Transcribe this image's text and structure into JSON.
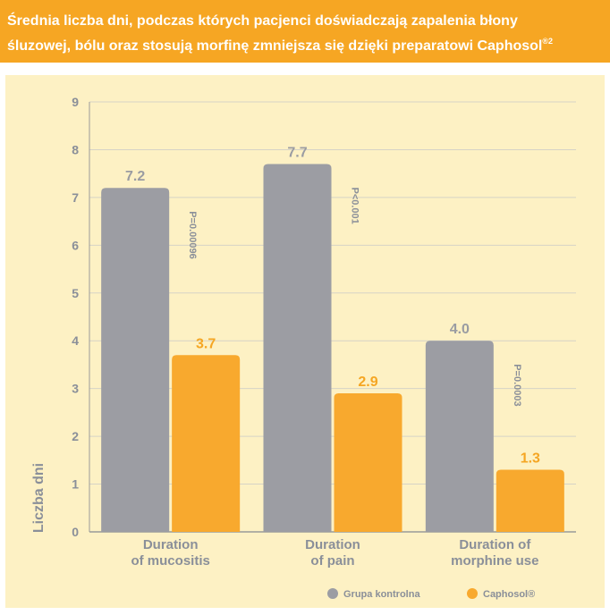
{
  "header": {
    "line1": "Średnia liczba dni, podczas których pacjenci doświadczają zapalenia błony",
    "line2": "śluzowej, bólu oraz stosują morfinę zmniejsza się dzięki preparatowi Caphosol",
    "sup": "®2"
  },
  "colors": {
    "header_bg": "#f6a623",
    "panel_bg": "#fdf1c4",
    "control": "#9c9da3",
    "caphosol": "#f8a92e",
    "text_gray": "#8a8f99",
    "axis": "#9a9a9a"
  },
  "chart_data": {
    "type": "bar",
    "ylabel": "Liczba dni",
    "ylim": [
      0,
      9
    ],
    "yticks": [
      0,
      1,
      2,
      3,
      4,
      5,
      6,
      7,
      8,
      9
    ],
    "grid": true,
    "legend_position": "bottom-right",
    "categories": [
      [
        "Duration",
        "of mucositis"
      ],
      [
        "Duration",
        "of pain"
      ],
      [
        "Duration of",
        "morphine use"
      ]
    ],
    "series": [
      {
        "name": "Grupa kontrolna",
        "values": [
          7.2,
          7.7,
          4.0
        ],
        "labels": [
          "7.2",
          "7.7",
          "4.0"
        ]
      },
      {
        "name": "Caphosol®",
        "values": [
          3.7,
          2.9,
          1.3
        ],
        "labels": [
          "3.7",
          "2.9",
          "1.3"
        ]
      }
    ],
    "annotations": [
      "P=0.00096",
      "P<0.001",
      "P=0.0003"
    ]
  }
}
